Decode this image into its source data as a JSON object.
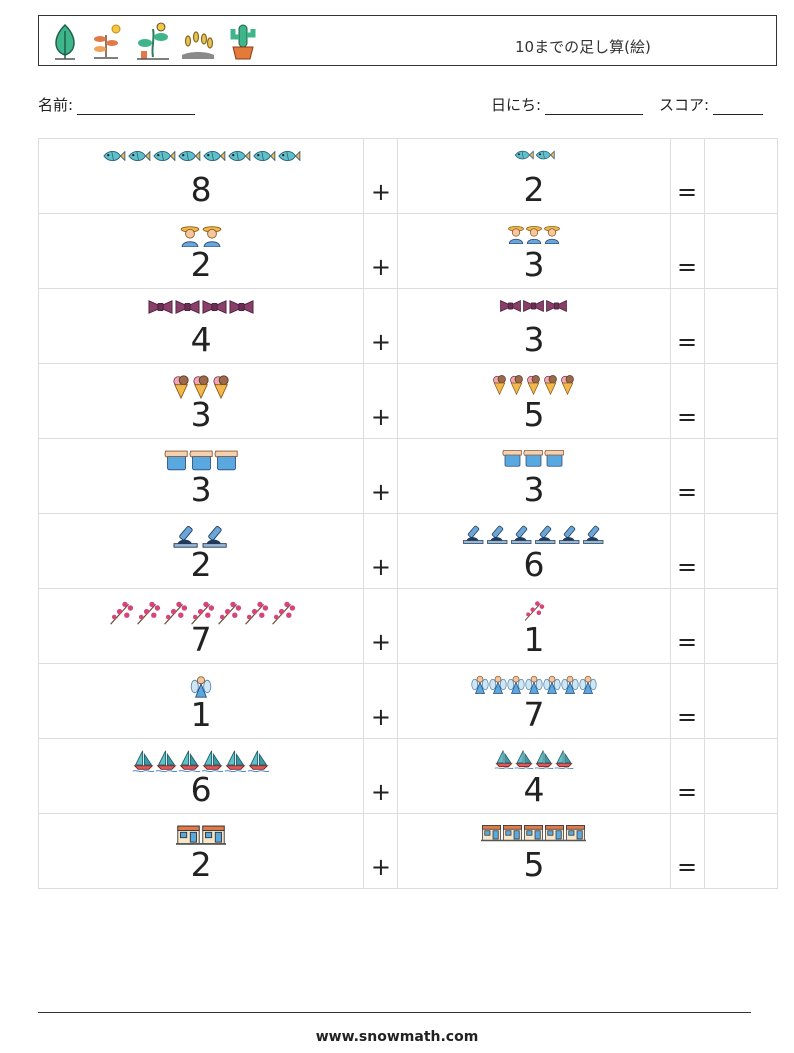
{
  "header": {
    "title": "10までの足し算(絵)",
    "icons": [
      "leaf-icon",
      "sprout-icon",
      "plant-icon",
      "wheat-icon",
      "cactus-icon"
    ]
  },
  "info": {
    "name_label": "名前:",
    "date_label": "日にち:",
    "score_label": "スコア:"
  },
  "operators": {
    "plus": "+",
    "equals": "="
  },
  "problems": [
    {
      "a": "8",
      "b": "2",
      "icon": "fish-icon"
    },
    {
      "a": "2",
      "b": "3",
      "icon": "farmer-icon"
    },
    {
      "a": "4",
      "b": "3",
      "icon": "bow-tie-icon"
    },
    {
      "a": "3",
      "b": "5",
      "icon": "ice-cream-icon"
    },
    {
      "a": "3",
      "b": "3",
      "icon": "jar-icon"
    },
    {
      "a": "2",
      "b": "6",
      "icon": "microscope-icon"
    },
    {
      "a": "7",
      "b": "1",
      "icon": "flower-branch-icon"
    },
    {
      "a": "1",
      "b": "7",
      "icon": "fairy-icon"
    },
    {
      "a": "6",
      "b": "4",
      "icon": "sailboat-icon"
    },
    {
      "a": "2",
      "b": "5",
      "icon": "shop-icon"
    }
  ],
  "footer": {
    "site": "www.snowmath.com"
  }
}
